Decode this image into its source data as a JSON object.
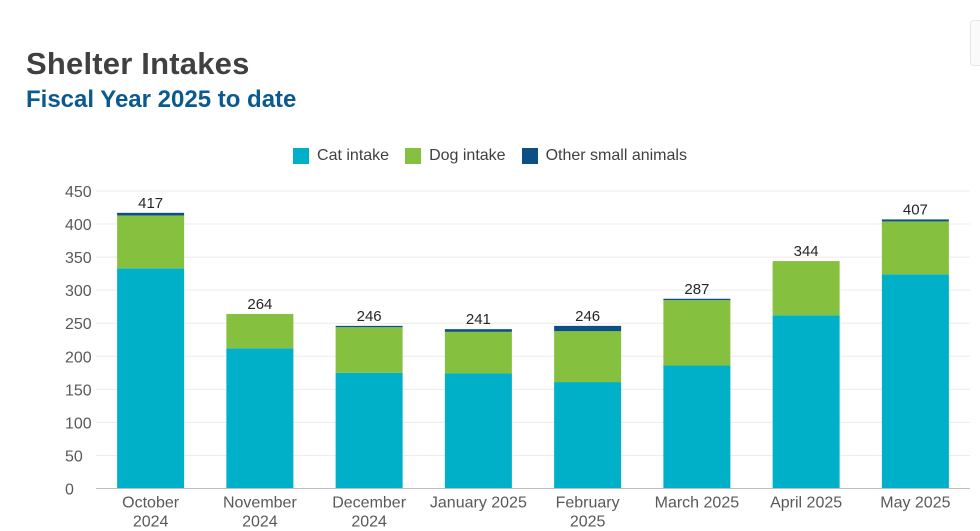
{
  "header": {
    "title": "Shelter Intakes",
    "subtitle": "Fiscal Year 2025 to date"
  },
  "colors": {
    "cat": "#00b0c8",
    "dog": "#86c03f",
    "other": "#0b4f85",
    "title": "#404040",
    "subtitle": "#0a5a8f"
  },
  "chart_data": {
    "type": "bar",
    "stacked": true,
    "title": "Shelter Intakes",
    "subtitle": "Fiscal Year 2025 to date",
    "xlabel": "",
    "ylabel": "",
    "ylim": [
      0,
      450
    ],
    "yticks": [
      0,
      50,
      100,
      150,
      200,
      250,
      300,
      350,
      400,
      450
    ],
    "legend_position": "top-center",
    "categories": [
      [
        "October",
        "2024"
      ],
      [
        "November",
        "2024"
      ],
      [
        "December",
        "2024"
      ],
      [
        "January 2025"
      ],
      [
        "February",
        "2025"
      ],
      [
        "March 2025"
      ],
      [
        "April 2025"
      ],
      [
        "May 2025"
      ]
    ],
    "series": [
      {
        "name": "Cat intake",
        "color": "#00b0c8",
        "values": [
          333,
          212,
          175,
          174,
          161,
          186,
          262,
          324
        ]
      },
      {
        "name": "Dog intake",
        "color": "#86c03f",
        "values": [
          80,
          52,
          69,
          63,
          77,
          99,
          82,
          80
        ]
      },
      {
        "name": "Other small animals",
        "color": "#0b4f85",
        "values": [
          4,
          0,
          2,
          4,
          8,
          2,
          0,
          3
        ]
      }
    ],
    "totals": [
      417,
      264,
      246,
      241,
      246,
      287,
      344,
      407
    ]
  }
}
